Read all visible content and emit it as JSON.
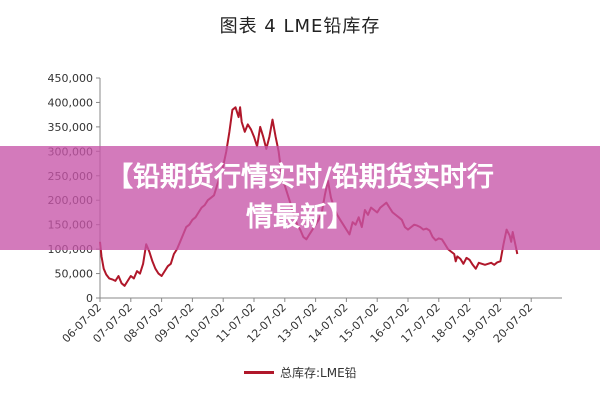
{
  "chart_data": {
    "type": "line",
    "title": "图表 4   LME铅库存",
    "ylim": [
      0,
      450000
    ],
    "y_ticks": [
      "450,000",
      "400,000",
      "350,000",
      "300,000",
      "250,000",
      "200,000",
      "150,000",
      "100,000",
      "50,000",
      "0"
    ],
    "x_ticks": [
      "06-07-02",
      "07-07-02",
      "08-07-02",
      "09-07-02",
      "10-07-02",
      "11-07-02",
      "12-07-02",
      "13-07-02",
      "14-07-02",
      "15-07-02",
      "16-07-02",
      "17-07-02",
      "18-07-02",
      "19-07-02",
      "20-07-02"
    ],
    "grid": false,
    "legend_placement": "bottom-center",
    "series": [
      {
        "name": "总库存:LME铅",
        "color": "#B0172A",
        "points": [
          [
            0.0,
            115000
          ],
          [
            0.05,
            85000
          ],
          [
            0.12,
            60000
          ],
          [
            0.2,
            48000
          ],
          [
            0.3,
            40000
          ],
          [
            0.4,
            38000
          ],
          [
            0.5,
            35000
          ],
          [
            0.6,
            45000
          ],
          [
            0.7,
            30000
          ],
          [
            0.8,
            25000
          ],
          [
            0.9,
            35000
          ],
          [
            1.0,
            45000
          ],
          [
            1.1,
            40000
          ],
          [
            1.2,
            55000
          ],
          [
            1.3,
            50000
          ],
          [
            1.4,
            70000
          ],
          [
            1.5,
            110000
          ],
          [
            1.6,
            95000
          ],
          [
            1.7,
            75000
          ],
          [
            1.8,
            60000
          ],
          [
            1.9,
            50000
          ],
          [
            2.0,
            45000
          ],
          [
            2.1,
            55000
          ],
          [
            2.2,
            65000
          ],
          [
            2.3,
            70000
          ],
          [
            2.4,
            90000
          ],
          [
            2.5,
            100000
          ],
          [
            2.6,
            115000
          ],
          [
            2.7,
            130000
          ],
          [
            2.8,
            145000
          ],
          [
            2.9,
            150000
          ],
          [
            3.0,
            160000
          ],
          [
            3.1,
            165000
          ],
          [
            3.2,
            175000
          ],
          [
            3.3,
            185000
          ],
          [
            3.4,
            190000
          ],
          [
            3.5,
            200000
          ],
          [
            3.6,
            205000
          ],
          [
            3.7,
            210000
          ],
          [
            3.8,
            230000
          ],
          [
            3.9,
            250000
          ],
          [
            4.0,
            270000
          ],
          [
            4.1,
            300000
          ],
          [
            4.2,
            340000
          ],
          [
            4.3,
            385000
          ],
          [
            4.4,
            390000
          ],
          [
            4.5,
            370000
          ],
          [
            4.55,
            390000
          ],
          [
            4.6,
            360000
          ],
          [
            4.7,
            340000
          ],
          [
            4.8,
            355000
          ],
          [
            4.9,
            345000
          ],
          [
            5.0,
            330000
          ],
          [
            5.1,
            310000
          ],
          [
            5.2,
            350000
          ],
          [
            5.3,
            330000
          ],
          [
            5.4,
            305000
          ],
          [
            5.5,
            330000
          ],
          [
            5.6,
            365000
          ],
          [
            5.7,
            330000
          ],
          [
            5.8,
            300000
          ],
          [
            5.9,
            250000
          ],
          [
            6.0,
            230000
          ],
          [
            6.1,
            210000
          ],
          [
            6.2,
            190000
          ],
          [
            6.3,
            170000
          ],
          [
            6.4,
            150000
          ],
          [
            6.5,
            140000
          ],
          [
            6.6,
            125000
          ],
          [
            6.7,
            120000
          ],
          [
            6.8,
            130000
          ],
          [
            6.9,
            140000
          ],
          [
            7.0,
            150000
          ],
          [
            7.1,
            160000
          ],
          [
            7.2,
            175000
          ],
          [
            7.3,
            210000
          ],
          [
            7.4,
            240000
          ],
          [
            7.5,
            205000
          ],
          [
            7.6,
            185000
          ],
          [
            7.7,
            170000
          ],
          [
            7.8,
            160000
          ],
          [
            7.9,
            150000
          ],
          [
            8.0,
            140000
          ],
          [
            8.1,
            130000
          ],
          [
            8.2,
            155000
          ],
          [
            8.3,
            150000
          ],
          [
            8.4,
            165000
          ],
          [
            8.5,
            145000
          ],
          [
            8.6,
            180000
          ],
          [
            8.7,
            170000
          ],
          [
            8.8,
            185000
          ],
          [
            8.9,
            180000
          ],
          [
            9.0,
            175000
          ],
          [
            9.1,
            185000
          ],
          [
            9.2,
            190000
          ],
          [
            9.3,
            195000
          ],
          [
            9.4,
            185000
          ],
          [
            9.5,
            175000
          ],
          [
            9.6,
            170000
          ],
          [
            9.7,
            165000
          ],
          [
            9.8,
            160000
          ],
          [
            9.9,
            145000
          ],
          [
            10.0,
            140000
          ],
          [
            10.1,
            145000
          ],
          [
            10.2,
            150000
          ],
          [
            10.3,
            148000
          ],
          [
            10.4,
            145000
          ],
          [
            10.5,
            140000
          ],
          [
            10.6,
            142000
          ],
          [
            10.7,
            138000
          ],
          [
            10.8,
            125000
          ],
          [
            10.9,
            118000
          ],
          [
            11.0,
            122000
          ],
          [
            11.1,
            120000
          ],
          [
            11.2,
            110000
          ],
          [
            11.3,
            100000
          ],
          [
            11.4,
            95000
          ],
          [
            11.5,
            90000
          ],
          [
            11.55,
            75000
          ],
          [
            11.6,
            85000
          ],
          [
            11.7,
            80000
          ],
          [
            11.8,
            70000
          ],
          [
            11.9,
            82000
          ],
          [
            12.0,
            78000
          ],
          [
            12.1,
            68000
          ],
          [
            12.2,
            60000
          ],
          [
            12.3,
            72000
          ],
          [
            12.4,
            70000
          ],
          [
            12.5,
            68000
          ],
          [
            12.6,
            70000
          ],
          [
            12.7,
            72000
          ],
          [
            12.8,
            68000
          ],
          [
            12.9,
            73000
          ],
          [
            13.0,
            75000
          ],
          [
            13.1,
            110000
          ],
          [
            13.2,
            140000
          ],
          [
            13.3,
            128000
          ],
          [
            13.35,
            115000
          ],
          [
            13.4,
            135000
          ],
          [
            13.5,
            105000
          ],
          [
            13.55,
            90000
          ]
        ]
      }
    ]
  },
  "overlay": {
    "line1": "【铅期货行情实时/铅期货实时行",
    "line2": "情最新】"
  }
}
